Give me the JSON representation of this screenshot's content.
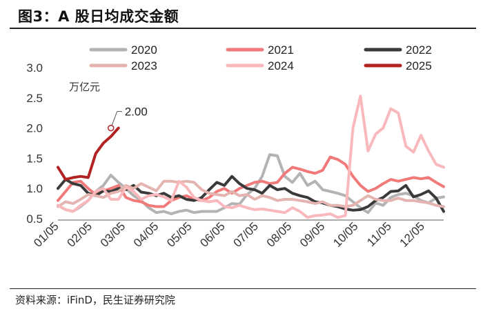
{
  "header": {
    "title": "图3：A 股日均成交金额"
  },
  "footer": {
    "source": "资料来源：iFinD，民生证券研究院"
  },
  "chart_data": {
    "type": "line",
    "title": "A 股日均成交金额",
    "unit_label": "万亿元",
    "xlabel": "",
    "ylabel": "",
    "ylim": [
      0.5,
      3.0
    ],
    "yticks": [
      "0.5",
      "1.0",
      "1.5",
      "2.0",
      "2.5",
      "3.0"
    ],
    "xticks": [
      "01/05",
      "02/05",
      "03/05",
      "04/05",
      "05/05",
      "06/05",
      "07/05",
      "08/05",
      "09/05",
      "10/05",
      "11/05",
      "12/05"
    ],
    "x_start_week": 1,
    "x_end_week": 52,
    "grid": false,
    "legend_position": "top",
    "annotation": {
      "text": "2.00",
      "series": "2025",
      "week": 8,
      "value": 2.0
    },
    "series": [
      {
        "name": "2020",
        "color": "#b3b3b3",
        "values": [
          0.72,
          0.65,
          0.62,
          0.7,
          0.8,
          0.95,
          1.05,
          1.22,
          1.1,
          1.0,
          0.88,
          0.8,
          0.68,
          0.6,
          0.62,
          0.58,
          0.62,
          0.64,
          0.6,
          0.62,
          0.62,
          0.62,
          0.68,
          0.75,
          0.74,
          0.9,
          1.0,
          1.2,
          1.56,
          1.54,
          1.2,
          1.1,
          1.25,
          1.05,
          1.12,
          0.98,
          0.95,
          0.92,
          0.88,
          0.78,
          0.68,
          0.6,
          0.76,
          0.72,
          0.85,
          0.9,
          0.92,
          0.88,
          0.8,
          0.76,
          0.84,
          0.86
        ]
      },
      {
        "name": "2021",
        "color": "#f07a7a",
        "values": [
          0.8,
          0.95,
          1.1,
          1.12,
          1.0,
          0.9,
          0.96,
          1.0,
          1.05,
          0.85,
          0.8,
          0.78,
          0.72,
          0.7,
          0.7,
          0.8,
          0.85,
          0.88,
          0.82,
          0.8,
          0.85,
          0.95,
          1.0,
          0.92,
          1.0,
          1.05,
          1.1,
          1.12,
          1.08,
          1.1,
          1.25,
          1.35,
          1.32,
          1.28,
          1.25,
          1.3,
          1.52,
          1.48,
          1.4,
          1.2,
          1.05,
          0.95,
          1.0,
          1.08,
          1.15,
          1.12,
          1.15,
          1.18,
          1.16,
          1.18,
          1.1,
          1.03
        ]
      },
      {
        "name": "2022",
        "color": "#3a3a3a",
        "values": [
          1.0,
          1.15,
          1.08,
          1.05,
          0.92,
          0.88,
          0.96,
          0.95,
          1.0,
          0.98,
          1.05,
          0.94,
          0.92,
          0.88,
          0.92,
          0.85,
          0.88,
          0.82,
          0.8,
          0.85,
          0.98,
          1.1,
          1.05,
          1.2,
          1.08,
          1.0,
          0.98,
          0.92,
          1.05,
          0.98,
          1.0,
          0.92,
          0.88,
          0.85,
          0.78,
          0.76,
          0.72,
          0.7,
          0.66,
          0.64,
          0.65,
          0.7,
          0.8,
          0.85,
          0.95,
          0.96,
          1.05,
          0.86,
          0.9,
          0.96,
          0.84,
          0.62
        ]
      },
      {
        "name": "2023",
        "color": "#e4b4b0",
        "values": [
          0.7,
          0.78,
          0.75,
          0.82,
          0.9,
          0.88,
          0.85,
          0.92,
          0.95,
          1.05,
          1.0,
          1.08,
          1.02,
          0.96,
          1.12,
          1.12,
          1.1,
          1.12,
          1.1,
          0.98,
          0.92,
          0.9,
          0.88,
          0.95,
          0.88,
          0.9,
          0.82,
          0.88,
          0.85,
          0.8,
          0.82,
          0.82,
          0.8,
          0.78,
          0.75,
          0.78,
          0.72,
          0.72,
          0.7,
          0.72,
          0.8,
          0.88,
          0.82,
          0.8,
          0.8,
          0.84,
          0.8,
          0.8,
          0.78,
          0.76,
          0.72,
          0.7
        ]
      },
      {
        "name": "2024",
        "color": "#f8b8bc",
        "values": [
          0.72,
          0.65,
          0.62,
          0.72,
          0.8,
          0.95,
          1.0,
          0.82,
          0.82,
          1.02,
          0.95,
          0.82,
          0.88,
          0.9,
          0.86,
          0.8,
          1.12,
          1.02,
          0.85,
          0.8,
          0.78,
          0.8,
          0.7,
          0.68,
          0.72,
          0.68,
          0.65,
          0.66,
          0.64,
          0.62,
          0.6,
          0.68,
          0.62,
          0.52,
          0.55,
          0.56,
          0.58,
          0.52,
          0.55,
          2.0,
          2.53,
          1.62,
          1.9,
          2.0,
          2.32,
          2.25,
          1.7,
          1.6,
          1.88,
          1.62,
          1.4,
          1.35
        ]
      },
      {
        "name": "2025",
        "color": "#b22222",
        "values": [
          1.35,
          1.15,
          1.18,
          1.2,
          1.18,
          1.58,
          1.75,
          1.86,
          2.0
        ]
      }
    ]
  }
}
